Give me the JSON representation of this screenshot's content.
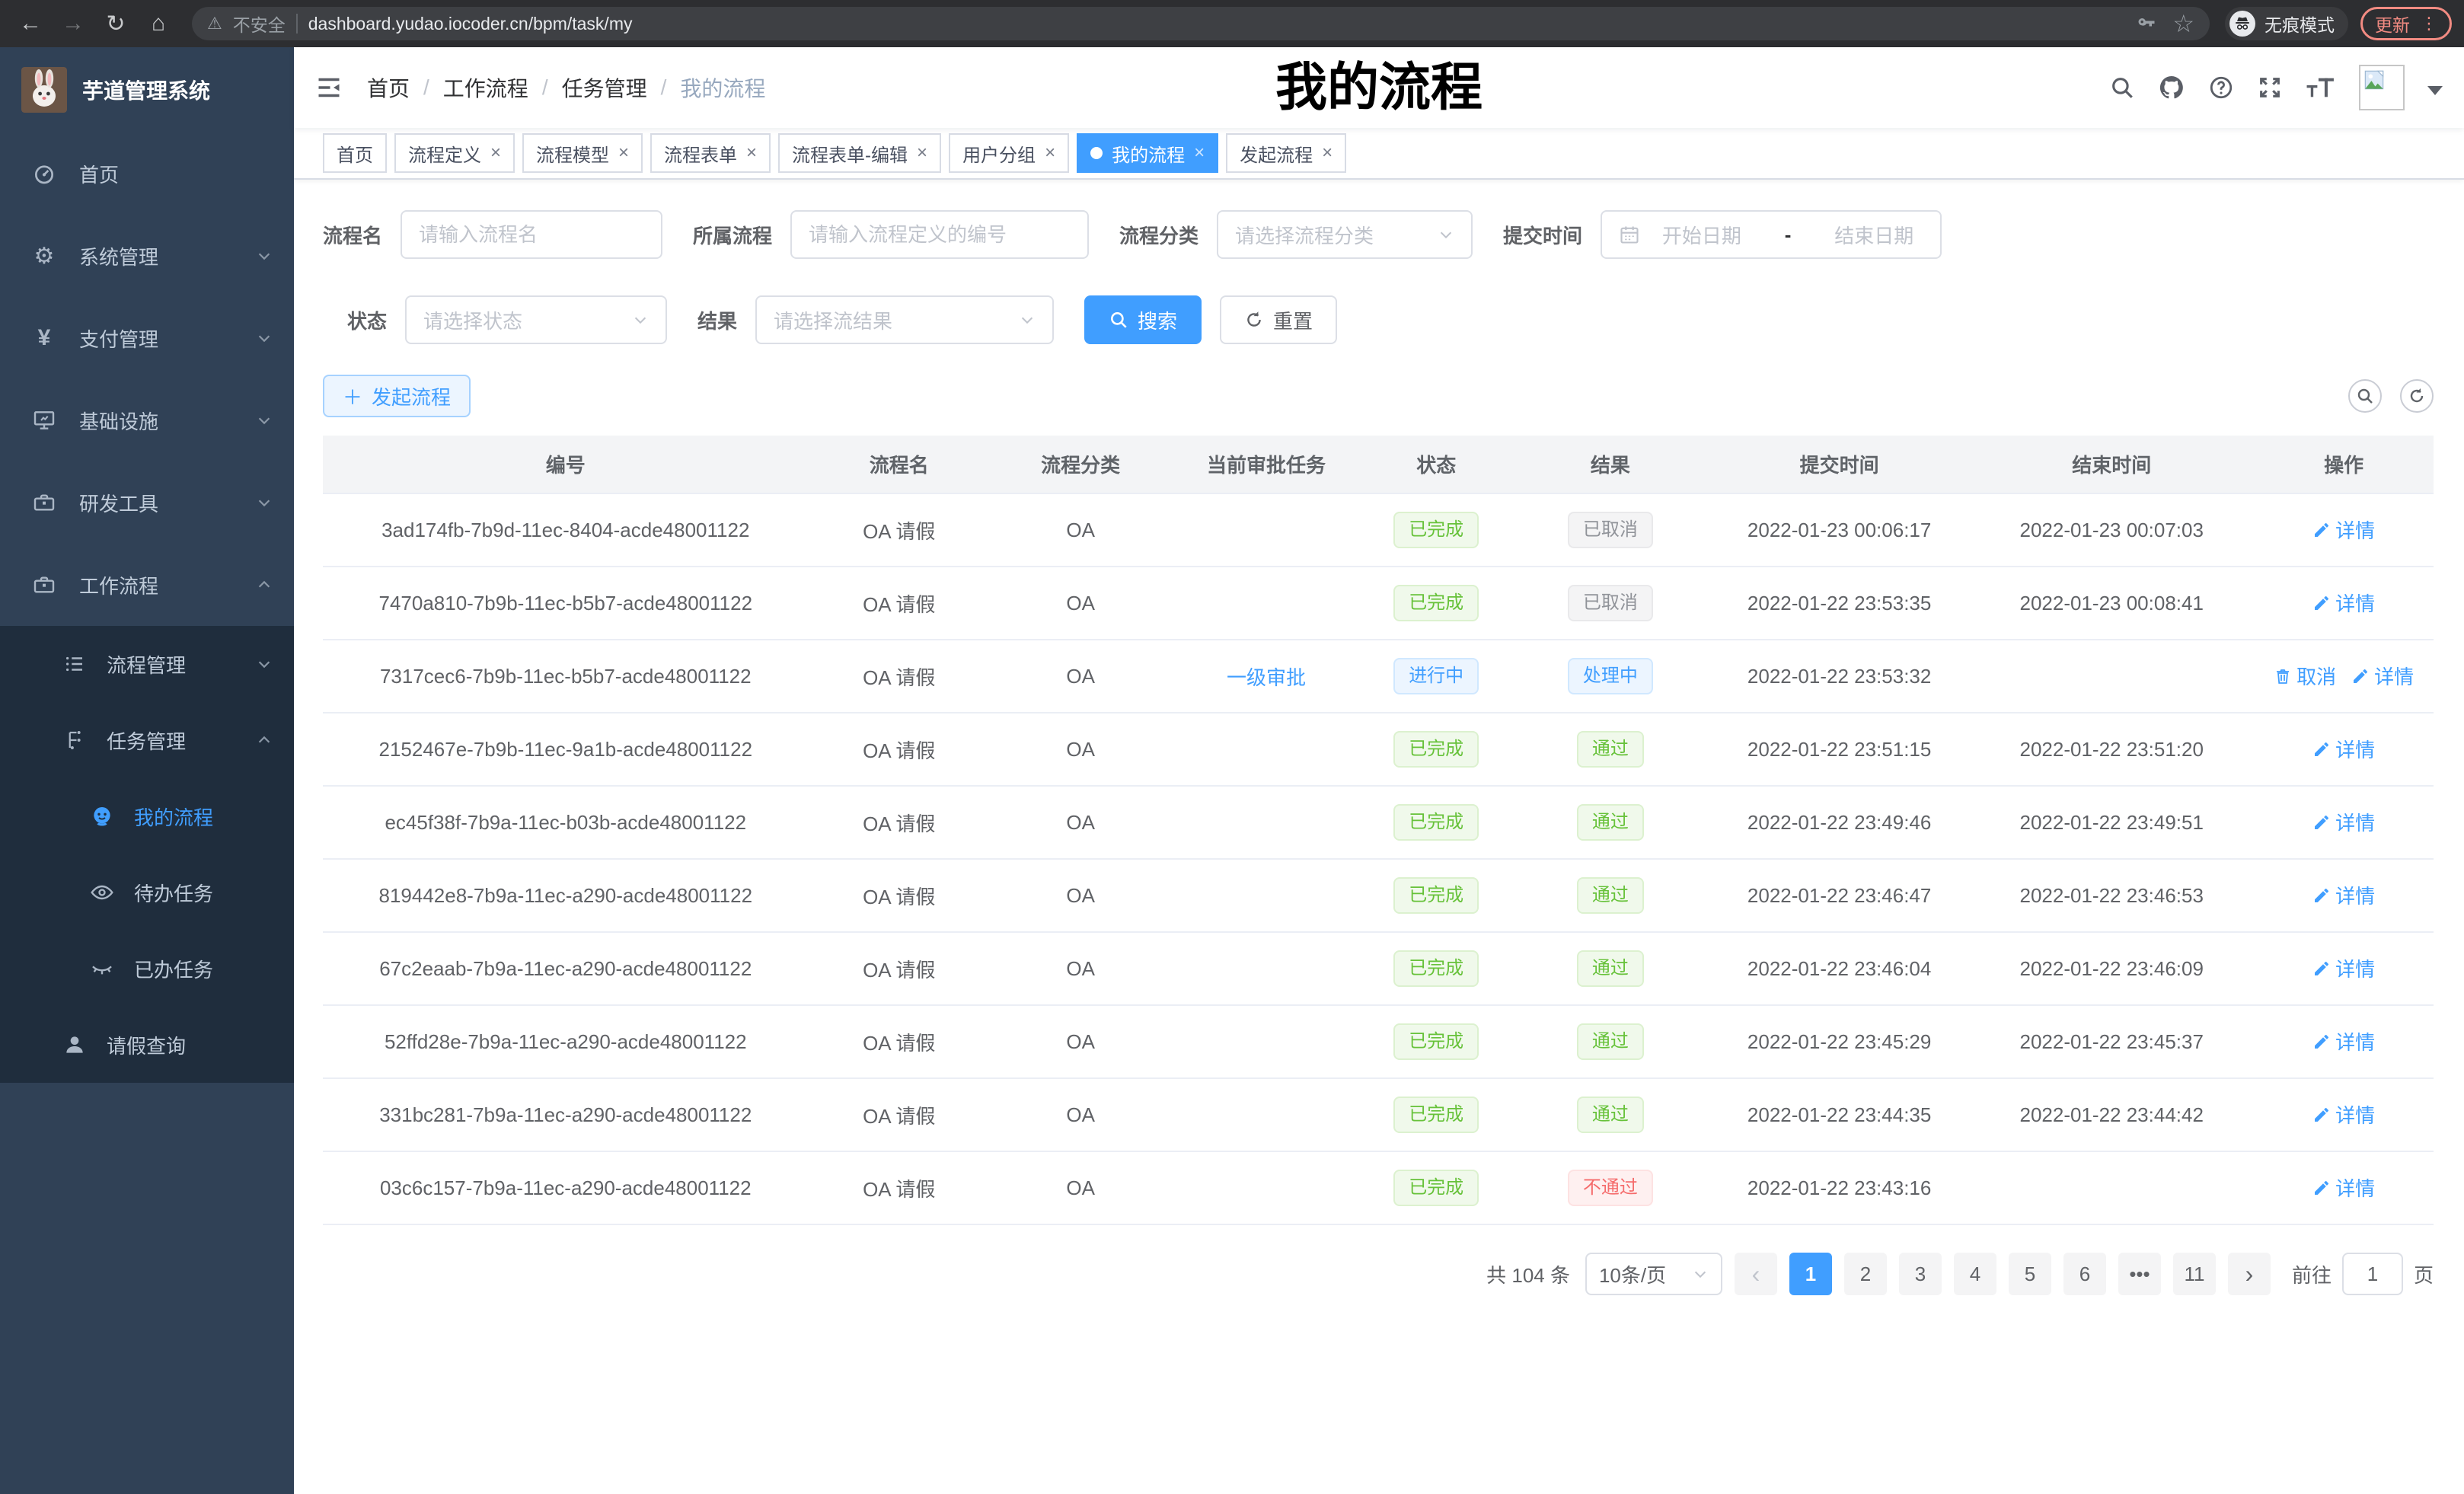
{
  "icons": {
    "back": "←",
    "forward": "→",
    "reload": "↻",
    "home": "⌂",
    "warning": "⚠",
    "star": "☆",
    "dots_vertical": "⋮",
    "close": "×",
    "caret": "▾",
    "chev_down": "⌄",
    "chev_up": "⌃",
    "breadcrumb_sep": "/",
    "plus": "＋",
    "gear": "⚙",
    "yen": "¥",
    "prev": "‹",
    "next": "›",
    "ellipsis": "•••",
    "range_dash": "-"
  },
  "browser": {
    "security_label": "不安全",
    "url": "dashboard.yudao.iocoder.cn/bpm/task/my",
    "incognito_label": "无痕模式",
    "update_label": "更新"
  },
  "annotation": {
    "text": "我的流程",
    "color": "#fa2a1b"
  },
  "sidebar": {
    "app_title": "芋道管理系统",
    "items": [
      {
        "label": "首页",
        "icon": "dashboard-icon"
      },
      {
        "label": "系统管理",
        "icon": "gear-icon"
      },
      {
        "label": "支付管理",
        "icon": "yen-icon"
      },
      {
        "label": "基础设施",
        "icon": "monitor-icon"
      },
      {
        "label": "研发工具",
        "icon": "briefcase-icon"
      },
      {
        "label": "工作流程",
        "icon": "suitcase-icon"
      }
    ],
    "workflow_children": [
      {
        "label": "流程管理",
        "icon": "list-icon"
      },
      {
        "label": "任务管理",
        "icon": "tree-icon"
      }
    ],
    "task_children": [
      {
        "label": "我的流程",
        "icon": "robot-icon",
        "active": true
      },
      {
        "label": "待办任务",
        "icon": "eye-icon"
      },
      {
        "label": "已办任务",
        "icon": "eye-closed-icon"
      }
    ],
    "leave_query": {
      "label": "请假查询",
      "icon": "user-icon"
    }
  },
  "breadcrumb": [
    "首页",
    "工作流程",
    "任务管理",
    "我的流程"
  ],
  "tabs": [
    {
      "label": "首页",
      "closable": false,
      "active": false
    },
    {
      "label": "流程定义",
      "closable": true,
      "active": false
    },
    {
      "label": "流程模型",
      "closable": true,
      "active": false
    },
    {
      "label": "流程表单",
      "closable": true,
      "active": false
    },
    {
      "label": "流程表单-编辑",
      "closable": true,
      "active": false
    },
    {
      "label": "用户分组",
      "closable": true,
      "active": false
    },
    {
      "label": "我的流程",
      "closable": true,
      "active": true
    },
    {
      "label": "发起流程",
      "closable": true,
      "active": false
    }
  ],
  "filters": {
    "process_name": {
      "label": "流程名",
      "placeholder": "请输入流程名"
    },
    "process_def": {
      "label": "所属流程",
      "placeholder": "请输入流程定义的编号"
    },
    "category": {
      "label": "流程分类",
      "placeholder": "请选择流程分类"
    },
    "submit_time": {
      "label": "提交时间",
      "start_placeholder": "开始日期",
      "end_placeholder": "结束日期"
    },
    "status": {
      "label": "状态",
      "placeholder": "请选择状态"
    },
    "result": {
      "label": "结果",
      "placeholder": "请选择流结果"
    },
    "search_label": "搜索",
    "reset_label": "重置"
  },
  "toolbar": {
    "create_label": "发起流程"
  },
  "table": {
    "columns": [
      "编号",
      "流程名",
      "流程分类",
      "当前审批任务",
      "状态",
      "结果",
      "提交时间",
      "结束时间",
      "操作"
    ],
    "col_widths": [
      "23%",
      "8.6%",
      "8.6%",
      "9%",
      "7.1%",
      "9.4%",
      "12.3%",
      "13.5%",
      "8.5%"
    ],
    "rows": [
      {
        "id": "3ad174fb-7b9d-11ec-8404-acde48001122",
        "name": "OA 请假",
        "category": "OA",
        "task": "",
        "status": {
          "text": "已完成",
          "type": "success"
        },
        "result": {
          "text": "已取消",
          "type": "info"
        },
        "submit_time": "2022-01-23 00:06:17",
        "end_time": "2022-01-23 00:07:03",
        "actions": [
          {
            "label": "详情",
            "icon": "edit-pen-icon"
          }
        ]
      },
      {
        "id": "7470a810-7b9b-11ec-b5b7-acde48001122",
        "name": "OA 请假",
        "category": "OA",
        "task": "",
        "status": {
          "text": "已完成",
          "type": "success"
        },
        "result": {
          "text": "已取消",
          "type": "info"
        },
        "submit_time": "2022-01-22 23:53:35",
        "end_time": "2022-01-23 00:08:41",
        "actions": [
          {
            "label": "详情",
            "icon": "edit-pen-icon"
          }
        ]
      },
      {
        "id": "7317cec6-7b9b-11ec-b5b7-acde48001122",
        "name": "OA 请假",
        "category": "OA",
        "task": "一级审批",
        "status": {
          "text": "进行中",
          "type": "primary"
        },
        "result": {
          "text": "处理中",
          "type": "primary"
        },
        "submit_time": "2022-01-22 23:53:32",
        "end_time": "",
        "actions": [
          {
            "label": "取消",
            "icon": "trash-icon"
          },
          {
            "label": "详情",
            "icon": "edit-pen-icon"
          }
        ]
      },
      {
        "id": "2152467e-7b9b-11ec-9a1b-acde48001122",
        "name": "OA 请假",
        "category": "OA",
        "task": "",
        "status": {
          "text": "已完成",
          "type": "success"
        },
        "result": {
          "text": "通过",
          "type": "success"
        },
        "submit_time": "2022-01-22 23:51:15",
        "end_time": "2022-01-22 23:51:20",
        "actions": [
          {
            "label": "详情",
            "icon": "edit-pen-icon"
          }
        ]
      },
      {
        "id": "ec45f38f-7b9a-11ec-b03b-acde48001122",
        "name": "OA 请假",
        "category": "OA",
        "task": "",
        "status": {
          "text": "已完成",
          "type": "success"
        },
        "result": {
          "text": "通过",
          "type": "success"
        },
        "submit_time": "2022-01-22 23:49:46",
        "end_time": "2022-01-22 23:49:51",
        "actions": [
          {
            "label": "详情",
            "icon": "edit-pen-icon"
          }
        ]
      },
      {
        "id": "819442e8-7b9a-11ec-a290-acde48001122",
        "name": "OA 请假",
        "category": "OA",
        "task": "",
        "status": {
          "text": "已完成",
          "type": "success"
        },
        "result": {
          "text": "通过",
          "type": "success"
        },
        "submit_time": "2022-01-22 23:46:47",
        "end_time": "2022-01-22 23:46:53",
        "actions": [
          {
            "label": "详情",
            "icon": "edit-pen-icon"
          }
        ]
      },
      {
        "id": "67c2eaab-7b9a-11ec-a290-acde48001122",
        "name": "OA 请假",
        "category": "OA",
        "task": "",
        "status": {
          "text": "已完成",
          "type": "success"
        },
        "result": {
          "text": "通过",
          "type": "success"
        },
        "submit_time": "2022-01-22 23:46:04",
        "end_time": "2022-01-22 23:46:09",
        "actions": [
          {
            "label": "详情",
            "icon": "edit-pen-icon"
          }
        ]
      },
      {
        "id": "52ffd28e-7b9a-11ec-a290-acde48001122",
        "name": "OA 请假",
        "category": "OA",
        "task": "",
        "status": {
          "text": "已完成",
          "type": "success"
        },
        "result": {
          "text": "通过",
          "type": "success"
        },
        "submit_time": "2022-01-22 23:45:29",
        "end_time": "2022-01-22 23:45:37",
        "actions": [
          {
            "label": "详情",
            "icon": "edit-pen-icon"
          }
        ]
      },
      {
        "id": "331bc281-7b9a-11ec-a290-acde48001122",
        "name": "OA 请假",
        "category": "OA",
        "task": "",
        "status": {
          "text": "已完成",
          "type": "success"
        },
        "result": {
          "text": "通过",
          "type": "success"
        },
        "submit_time": "2022-01-22 23:44:35",
        "end_time": "2022-01-22 23:44:42",
        "actions": [
          {
            "label": "详情",
            "icon": "edit-pen-icon"
          }
        ]
      },
      {
        "id": "03c6c157-7b9a-11ec-a290-acde48001122",
        "name": "OA 请假",
        "category": "OA",
        "task": "",
        "status": {
          "text": "已完成",
          "type": "success"
        },
        "result": {
          "text": "不通过",
          "type": "danger"
        },
        "submit_time": "2022-01-22 23:43:16",
        "end_time": "",
        "actions": [
          {
            "label": "详情",
            "icon": "edit-pen-icon"
          }
        ]
      }
    ]
  },
  "pagination": {
    "total_label": "共 104 条",
    "page_size": "10条/页",
    "pages": [
      "1",
      "2",
      "3",
      "4",
      "5",
      "6",
      "•••",
      "11"
    ],
    "active_page": "1",
    "goto_label": "前往",
    "goto_value": "1",
    "page_unit": "页"
  }
}
